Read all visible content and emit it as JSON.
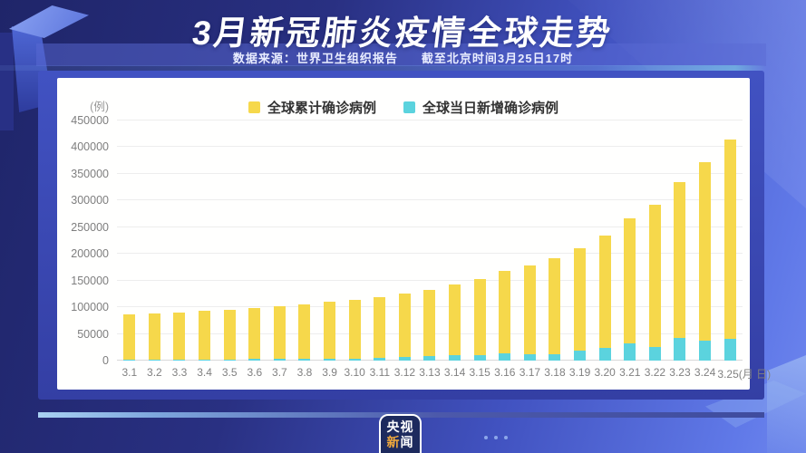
{
  "header": {
    "title": "3月新冠肺炎疫情全球走势",
    "source": "数据来源：世界卫生组织报告",
    "asof": "截至北京时间3月25日17时"
  },
  "chart_data": {
    "type": "bar",
    "stacked": true,
    "title": "3月新冠肺炎疫情全球走势",
    "unit_label": "(例)",
    "x_axis_suffix": "(月 日)",
    "legend_position": "top",
    "grid": true,
    "ylim": [
      0,
      450000
    ],
    "yticks": [
      0,
      50000,
      100000,
      150000,
      200000,
      250000,
      300000,
      350000,
      400000,
      450000
    ],
    "categories": [
      "3.1",
      "3.2",
      "3.3",
      "3.4",
      "3.5",
      "3.6",
      "3.7",
      "3.8",
      "3.9",
      "3.10",
      "3.11",
      "3.12",
      "3.13",
      "3.14",
      "3.15",
      "3.16",
      "3.17",
      "3.18",
      "3.19",
      "3.20",
      "3.21",
      "3.22",
      "3.23",
      "3.24",
      "3.25"
    ],
    "series": [
      {
        "name": "全球累计确诊病例",
        "color": "#f6d84b",
        "role": "total_bar_height",
        "values": [
          87137,
          88948,
          90869,
          93091,
          95324,
          98192,
          101927,
          105586,
          109577,
          113702,
          118319,
          125048,
          132758,
          142539,
          153517,
          167515,
          179112,
          191127,
          209839,
          234073,
          266073,
          292142,
          334981,
          372757,
          414179
        ]
      },
      {
        "name": "全球当日新增确诊病例",
        "color": "#5bd3de",
        "role": "bottom_segment",
        "values": [
          1739,
          1811,
          1921,
          2222,
          2233,
          2868,
          3735,
          3659,
          3991,
          4125,
          4617,
          6729,
          7710,
          9781,
          10978,
          13998,
          11597,
          12015,
          18712,
          24234,
          32000,
          26069,
          42839,
          37776,
          41422
        ]
      }
    ]
  },
  "footer": {
    "logo_line1": "央视",
    "logo_new": "新",
    "logo_wen": "闻"
  }
}
